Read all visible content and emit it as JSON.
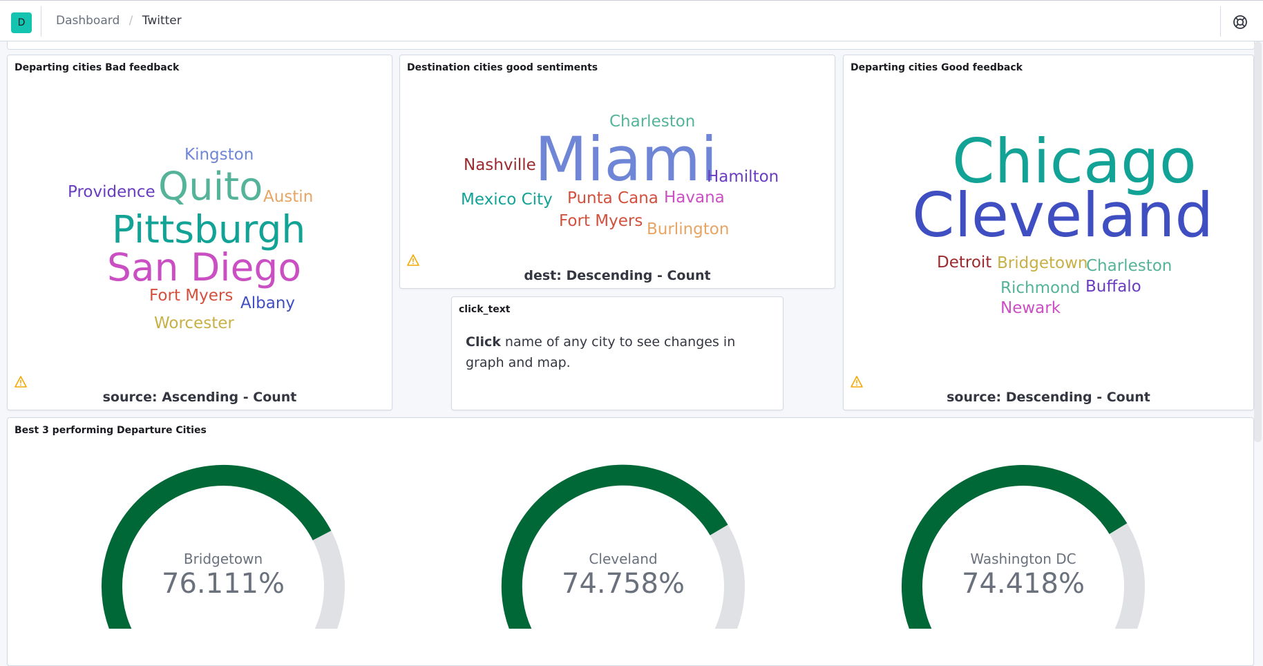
{
  "header": {
    "logo_letter": "D",
    "breadcrumbs": [
      "Dashboard",
      "Twitter"
    ],
    "help_icon": "help-lifebuoy-icon"
  },
  "panels": {
    "bad_feedback": {
      "title": "Departing cities Bad feedback",
      "caption": "source: Ascending - Count",
      "warning_icon": "warning-icon",
      "words": [
        "Kingston",
        "Providence",
        "Quito",
        "Austin",
        "Pittsburgh",
        "San Diego",
        "Fort Myers",
        "Albany",
        "Worcester"
      ]
    },
    "dest_good": {
      "title": "Destination cities good sentiments",
      "caption": "dest: Descending - Count",
      "warning_icon": "warning-icon",
      "words": [
        "Charleston",
        "Nashville",
        "Miami",
        "Hamilton",
        "Mexico City",
        "Punta Cana",
        "Havana",
        "Fort Myers",
        "Burlington"
      ]
    },
    "click_text": {
      "title": "click_text",
      "bold": "Click",
      "rest": " name of any city to see changes in graph and map."
    },
    "good_feedback": {
      "title": "Departing cities Good feedback",
      "caption": "source: Descending - Count",
      "warning_icon": "warning-icon",
      "words": [
        "Chicago",
        "Cleveland",
        "Detroit",
        "Bridgetown",
        "Charleston",
        "Richmond",
        "Buffalo",
        "Newark"
      ]
    },
    "gauges": {
      "title": "Best 3 performing Departure Cities",
      "fill_color": "#006837",
      "track_color": "#e0e1e4",
      "items": [
        {
          "label": "Bridgetown",
          "value": "76.111%",
          "fraction": 0.76111
        },
        {
          "label": "Cleveland",
          "value": "74.758%",
          "fraction": 0.74758
        },
        {
          "label": "Washington DC",
          "value": "74.418%",
          "fraction": 0.74418
        }
      ]
    }
  },
  "colors": {
    "logo_bg": "#14c4b1",
    "warning": "#f5a700"
  }
}
